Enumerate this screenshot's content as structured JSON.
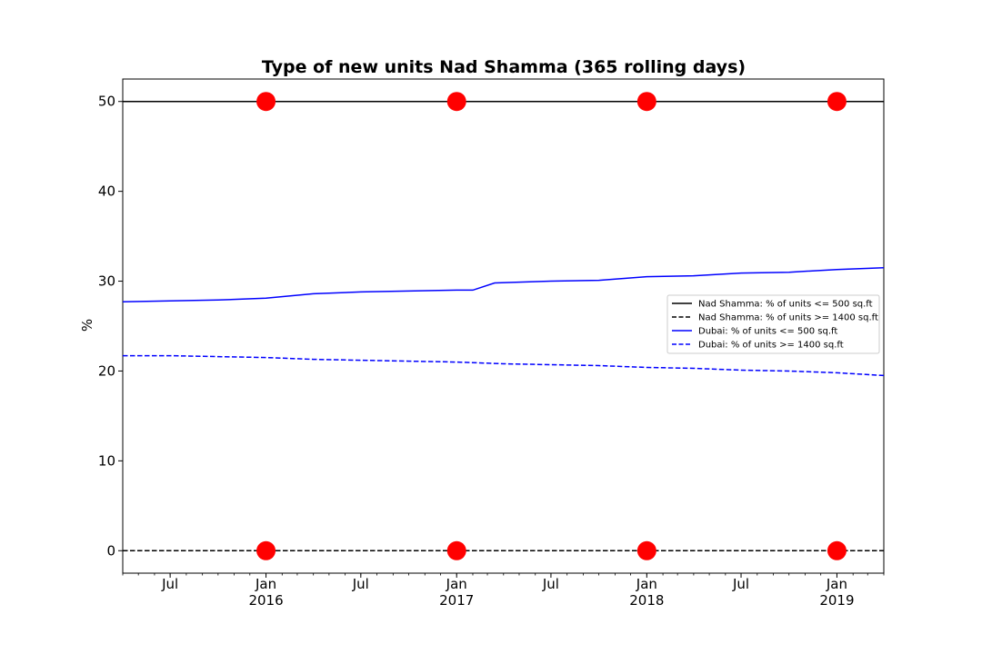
{
  "chart_data": {
    "type": "line",
    "title": "Type of new units Nad Shamma (365 rolling days)",
    "xlabel": "",
    "ylabel": "%",
    "x_range": [
      "2015-04-01",
      "2019-04-01"
    ],
    "ylim": [
      -2.5,
      52.5
    ],
    "y_ticks": [
      0,
      10,
      20,
      30,
      40,
      50
    ],
    "x_major_ticks": [
      {
        "date": "2015-07-01",
        "line1": "Jul",
        "line2": ""
      },
      {
        "date": "2016-01-01",
        "line1": "Jan",
        "line2": "2016"
      },
      {
        "date": "2016-07-01",
        "line1": "Jul",
        "line2": ""
      },
      {
        "date": "2017-01-01",
        "line1": "Jan",
        "line2": "2017"
      },
      {
        "date": "2017-07-01",
        "line1": "Jul",
        "line2": ""
      },
      {
        "date": "2018-01-01",
        "line1": "Jan",
        "line2": "2018"
      },
      {
        "date": "2018-07-01",
        "line1": "Jul",
        "line2": ""
      },
      {
        "date": "2019-01-01",
        "line1": "Jan",
        "line2": "2019"
      }
    ],
    "grid": false,
    "legend_position": "center-right",
    "series": [
      {
        "name": "Nad Shamma: % of units <= 500 sq.ft",
        "color": "#000000",
        "style": "solid",
        "x": [
          "2015-04-01",
          "2019-04-01"
        ],
        "y": [
          50,
          50
        ]
      },
      {
        "name": "Nad Shamma: % of units >= 1400 sq.ft",
        "color": "#000000",
        "style": "dashed",
        "x": [
          "2015-04-01",
          "2019-04-01"
        ],
        "y": [
          0,
          0
        ]
      },
      {
        "name": "Dubai: % of units <= 500 sq.ft",
        "color": "#0000ff",
        "style": "solid",
        "x": [
          "2015-04-01",
          "2015-07-01",
          "2015-10-01",
          "2016-01-01",
          "2016-04-01",
          "2016-07-01",
          "2016-10-01",
          "2017-01-01",
          "2017-02-01",
          "2017-03-15",
          "2017-07-01",
          "2017-10-01",
          "2018-01-01",
          "2018-04-01",
          "2018-07-01",
          "2018-10-01",
          "2019-01-01",
          "2019-04-01"
        ],
        "y": [
          27.7,
          27.8,
          27.9,
          28.1,
          28.6,
          28.8,
          28.9,
          29.0,
          29.0,
          29.8,
          30.0,
          30.1,
          30.5,
          30.6,
          30.9,
          31.0,
          31.3,
          31.5
        ]
      },
      {
        "name": "Dubai: % of units >= 1400 sq.ft",
        "color": "#0000ff",
        "style": "dashed",
        "x": [
          "2015-04-01",
          "2015-07-01",
          "2015-10-01",
          "2016-01-01",
          "2016-04-01",
          "2016-07-01",
          "2016-10-01",
          "2017-01-01",
          "2017-04-01",
          "2017-07-01",
          "2017-10-01",
          "2018-01-01",
          "2018-04-01",
          "2018-07-01",
          "2018-10-01",
          "2019-01-01",
          "2019-04-01"
        ],
        "y": [
          21.7,
          21.7,
          21.6,
          21.5,
          21.3,
          21.2,
          21.1,
          21.0,
          20.8,
          20.7,
          20.6,
          20.4,
          20.3,
          20.1,
          20.0,
          19.8,
          19.5
        ]
      }
    ],
    "markers": {
      "color": "#ff0000",
      "points": [
        {
          "x": "2016-01-01",
          "y": 50
        },
        {
          "x": "2017-01-01",
          "y": 50
        },
        {
          "x": "2018-01-01",
          "y": 50
        },
        {
          "x": "2019-01-01",
          "y": 50
        },
        {
          "x": "2016-01-01",
          "y": 0
        },
        {
          "x": "2017-01-01",
          "y": 0
        },
        {
          "x": "2018-01-01",
          "y": 0
        },
        {
          "x": "2019-01-01",
          "y": 0
        }
      ]
    }
  }
}
